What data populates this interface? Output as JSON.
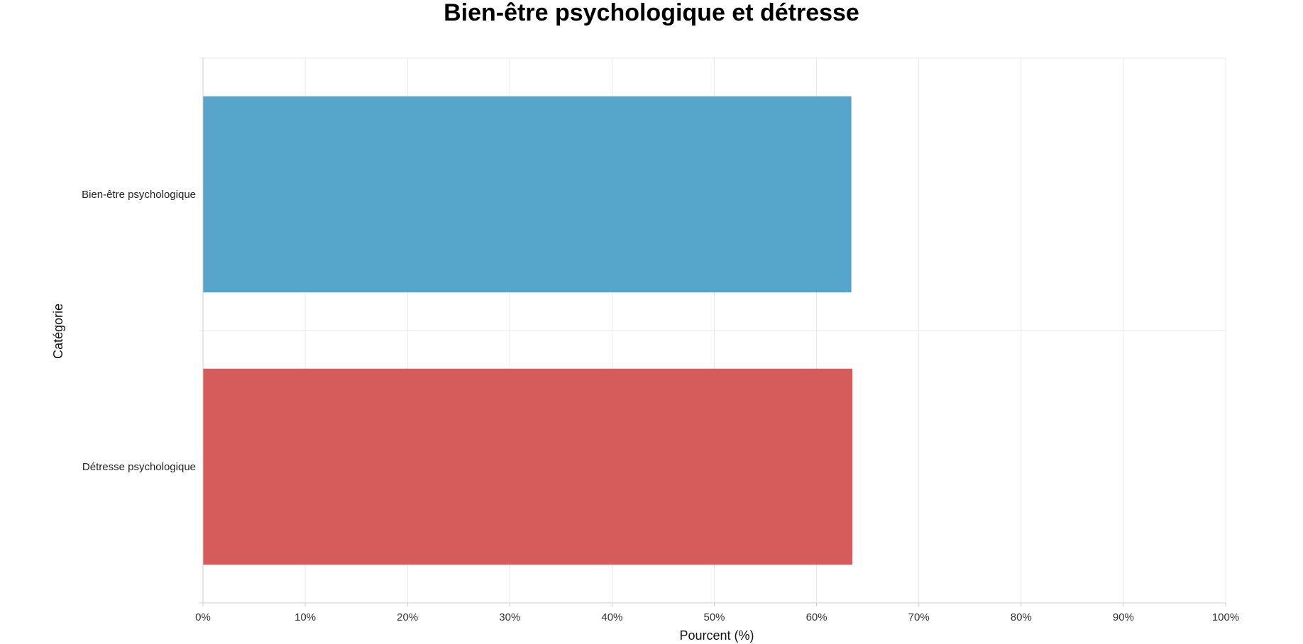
{
  "chart_data": {
    "type": "bar",
    "orientation": "horizontal",
    "title": "Bien-être psychologique et détresse",
    "xlabel": "Pourcent (%)",
    "ylabel": "Catégorie",
    "xlim": [
      0,
      100
    ],
    "x_ticks": [
      0,
      10,
      20,
      30,
      40,
      50,
      60,
      70,
      80,
      90,
      100
    ],
    "x_tick_labels": [
      "0%",
      "10%",
      "20%",
      "30%",
      "40%",
      "50%",
      "60%",
      "70%",
      "80%",
      "90%",
      "100%"
    ],
    "categories": [
      "Bien-être psychologique",
      "Détresse psychologique"
    ],
    "values": [
      63.4,
      63.5
    ],
    "colors": [
      "#56a4c9",
      "#d65b5b"
    ],
    "grid": true,
    "legend": "none"
  }
}
